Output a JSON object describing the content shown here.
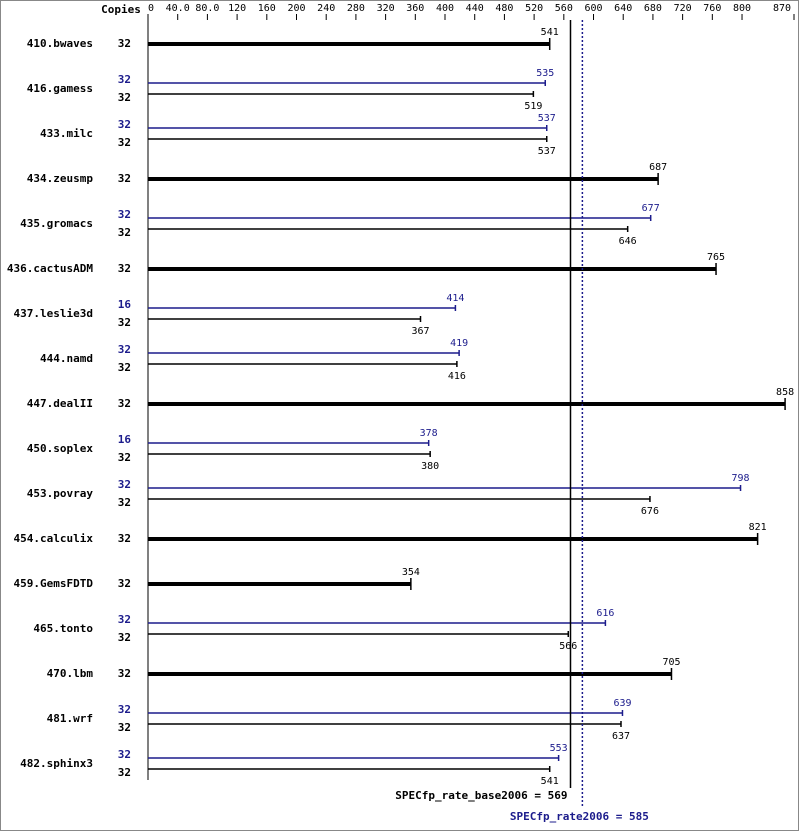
{
  "chart_data": {
    "type": "bar",
    "orientation": "horizontal",
    "copies_header": "Copies",
    "base_color": "#000000",
    "peak_color": "#1c1c8c",
    "xlim": [
      0,
      870
    ],
    "xticks": [
      0,
      {
        "value": 40,
        "label": "40.0"
      },
      {
        "value": 80,
        "label": "80.0"
      },
      120,
      160,
      200,
      240,
      280,
      320,
      360,
      400,
      440,
      480,
      520,
      560,
      600,
      640,
      680,
      720,
      760,
      800,
      870
    ],
    "rows": [
      {
        "label": "410.bwaves",
        "base_copies": 32,
        "base": 541
      },
      {
        "label": "416.gamess",
        "peak_copies": 32,
        "peak": 535,
        "base_copies": 32,
        "base": 519
      },
      {
        "label": "433.milc",
        "peak_copies": 32,
        "peak": 537,
        "base_copies": 32,
        "base": 537
      },
      {
        "label": "434.zeusmp",
        "base_copies": 32,
        "base": 687
      },
      {
        "label": "435.gromacs",
        "peak_copies": 32,
        "peak": 677,
        "base_copies": 32,
        "base": 646
      },
      {
        "label": "436.cactusADM",
        "base_copies": 32,
        "base": 765
      },
      {
        "label": "437.leslie3d",
        "peak_copies": 16,
        "peak": 414,
        "base_copies": 32,
        "base": 367
      },
      {
        "label": "444.namd",
        "peak_copies": 32,
        "peak": 419,
        "base_copies": 32,
        "base": 416
      },
      {
        "label": "447.dealII",
        "base_copies": 32,
        "base": 858
      },
      {
        "label": "450.soplex",
        "peak_copies": 16,
        "peak": 378,
        "base_copies": 32,
        "base": 380
      },
      {
        "label": "453.povray",
        "peak_copies": 32,
        "peak": 798,
        "base_copies": 32,
        "base": 676
      },
      {
        "label": "454.calculix",
        "base_copies": 32,
        "base": 821
      },
      {
        "label": "459.GemsFDTD",
        "base_copies": 32,
        "base": 354
      },
      {
        "label": "465.tonto",
        "peak_copies": 32,
        "peak": 616,
        "base_copies": 32,
        "base": 566
      },
      {
        "label": "470.lbm",
        "base_copies": 32,
        "base": 705
      },
      {
        "label": "481.wrf",
        "peak_copies": 32,
        "peak": 639,
        "base_copies": 32,
        "base": 637
      },
      {
        "label": "482.sphinx3",
        "peak_copies": 32,
        "peak": 553,
        "base_copies": 32,
        "base": 541
      }
    ],
    "base_summary": {
      "label": "SPECfp_rate_base2006 = 569",
      "value": 569
    },
    "peak_summary": {
      "label": "SPECfp_rate2006 = 585",
      "value": 585
    }
  }
}
